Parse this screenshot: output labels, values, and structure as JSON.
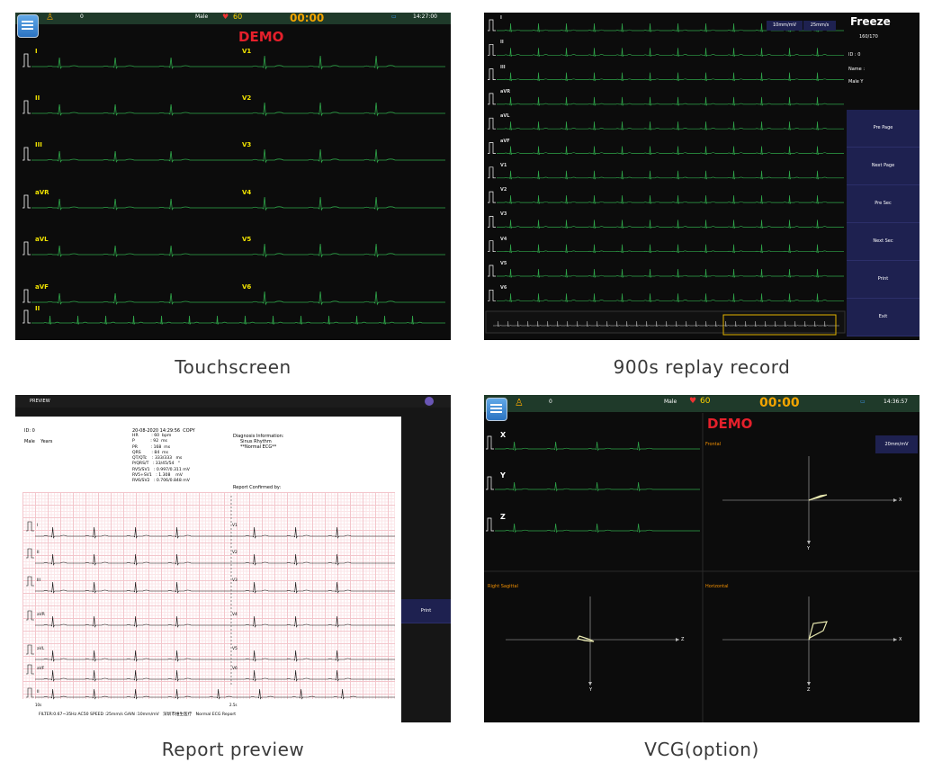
{
  "captions": {
    "touchscreen": "Touchscreen",
    "replay": "900s replay record",
    "report": "Report preview",
    "vcg": "VCG(option)"
  },
  "touch": {
    "header": {
      "id": "0",
      "gender": "Male",
      "heart_rate": "60",
      "timer": "00:00",
      "time": "14:27:00"
    },
    "demo": "DEMO",
    "leads_left": [
      "I",
      "II",
      "III",
      "aVR",
      "aVL",
      "aVF"
    ],
    "leads_right": [
      "V1",
      "V2",
      "V3",
      "V4",
      "V5",
      "V6"
    ],
    "rhythm_lead": "II"
  },
  "replay": {
    "title": "Freeze",
    "page": "160/170",
    "info": {
      "id": "ID : 0",
      "name": "Name :",
      "gender_age": "Male    Y"
    },
    "scale": {
      "gain": "10mm/mV",
      "speed": "25mm/s"
    },
    "leads": [
      "I",
      "II",
      "III",
      "aVR",
      "aVL",
      "aVF",
      "V1",
      "V2",
      "V3",
      "V4",
      "V5",
      "V6"
    ],
    "buttons": [
      "Pre Page",
      "Next Page",
      "Pre Sec",
      "Next Sec",
      "Print",
      "Exit"
    ]
  },
  "report": {
    "bar_title": "PREVIEW",
    "id_line": "ID: 0",
    "gender_line": "Male    Years",
    "datetime": "20-08-2020 14:29:56  COPY",
    "params": "HR          : 60  bpm\nP            : 92  ms\nPR          : 168  ms\nQRS        : 84  ms\nQT/QTc    : 333/333   ms\nP/QRS/T   : 33/45/54   °\nRV5/SV1   : 0.997/0.311 mV\nRV5+SV1   : 1.308    mV\nRV6/SV2   : 0.706/0.848 mV",
    "diagnosis_title": "Diagnosis Information:",
    "diagnosis_1": "Sinus Rhythm",
    "diagnosis_2": "**Normal ECG**",
    "confirmed": "Report Confirmed by:",
    "leads_left": [
      "I",
      "II",
      "III",
      "aVR",
      "aVL",
      "aVF",
      "II"
    ],
    "leads_right": [
      "V1",
      "V2",
      "V3",
      "V4",
      "V5",
      "V6"
    ],
    "footer": "FILTER:0.67~35Hz AC50 SPEED :25mm/s GAIN :10mm/mV   深圳市维生医疗   Normal ECG Report",
    "print_button": "Print",
    "scale_left": "10s",
    "scale_right": "2.5s"
  },
  "vcg": {
    "header": {
      "id": "0",
      "gender": "Male",
      "heart_rate": "60",
      "timer": "00:00",
      "time": "14:36:57"
    },
    "demo": "DEMO",
    "leads": [
      "X",
      "Y",
      "Z"
    ],
    "gain_button": "20mm/mV",
    "planes": {
      "frontal": {
        "title": "Frontal",
        "h_axis": "X",
        "v_axis": "Y"
      },
      "sagittal": {
        "title": "Right Sagittal",
        "h_axis": "Z",
        "v_axis": "Y"
      },
      "horizontal": {
        "title": "Horizontal",
        "h_axis": "X",
        "v_axis": "Z"
      }
    }
  },
  "colors": {
    "ecg_trace": "#2fa64a",
    "lead_label": "#f2e400",
    "accent_timer": "#f2a400",
    "demo": "#e5202b",
    "button_bg": "#1e2150"
  }
}
